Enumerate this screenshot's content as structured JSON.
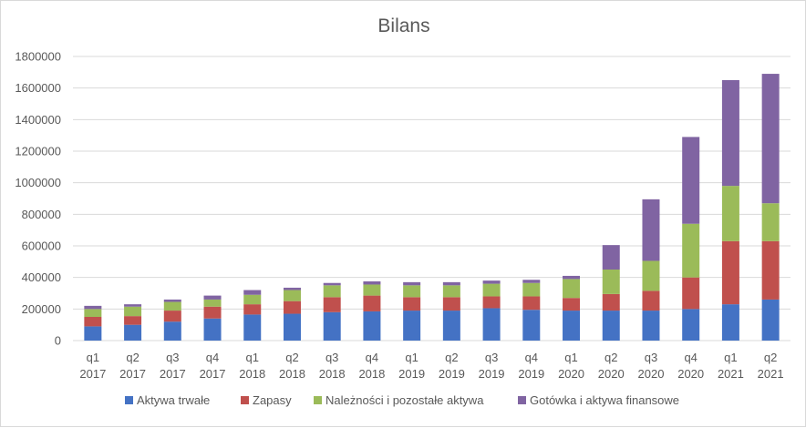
{
  "chart_data": {
    "type": "bar",
    "stacked": true,
    "title": "Bilans",
    "xlabel": "",
    "ylabel": "",
    "ylim": [
      0,
      1800000
    ],
    "yticks": [
      0,
      200000,
      400000,
      600000,
      800000,
      1000000,
      1200000,
      1400000,
      1600000,
      1800000
    ],
    "grid": true,
    "legend_position": "bottom",
    "categories": [
      [
        "q1",
        "2017"
      ],
      [
        "q2",
        "2017"
      ],
      [
        "q3",
        "2017"
      ],
      [
        "q4",
        "2017"
      ],
      [
        "q1",
        "2018"
      ],
      [
        "q2",
        "2018"
      ],
      [
        "q3",
        "2018"
      ],
      [
        "q4",
        "2018"
      ],
      [
        "q1",
        "2019"
      ],
      [
        "q2",
        "2019"
      ],
      [
        "q3",
        "2019"
      ],
      [
        "q4",
        "2019"
      ],
      [
        "q1",
        "2020"
      ],
      [
        "q2",
        "2020"
      ],
      [
        "q3",
        "2020"
      ],
      [
        "q4",
        "2020"
      ],
      [
        "q1",
        "2021"
      ],
      [
        "q2",
        "2021"
      ]
    ],
    "series": [
      {
        "name": "Aktywa trwałe",
        "color": "#4472c4",
        "values": [
          90000,
          100000,
          120000,
          140000,
          165000,
          170000,
          180000,
          185000,
          190000,
          190000,
          205000,
          195000,
          190000,
          190000,
          190000,
          200000,
          230000,
          260000
        ]
      },
      {
        "name": "Zapasy",
        "color": "#c0504d",
        "values": [
          60000,
          55000,
          70000,
          75000,
          65000,
          80000,
          95000,
          100000,
          85000,
          85000,
          75000,
          85000,
          80000,
          105000,
          125000,
          200000,
          400000,
          370000
        ]
      },
      {
        "name": "Należności i pozostałe aktywa",
        "color": "#9bbb59",
        "values": [
          50000,
          60000,
          55000,
          45000,
          60000,
          70000,
          75000,
          70000,
          75000,
          75000,
          80000,
          85000,
          120000,
          155000,
          190000,
          340000,
          350000,
          240000
        ]
      },
      {
        "name": "Gotówka i aktywa finansowe",
        "color": "#8064a2",
        "values": [
          20000,
          15000,
          15000,
          25000,
          30000,
          15000,
          15000,
          20000,
          20000,
          20000,
          20000,
          20000,
          20000,
          155000,
          390000,
          550000,
          670000,
          820000
        ]
      }
    ]
  }
}
